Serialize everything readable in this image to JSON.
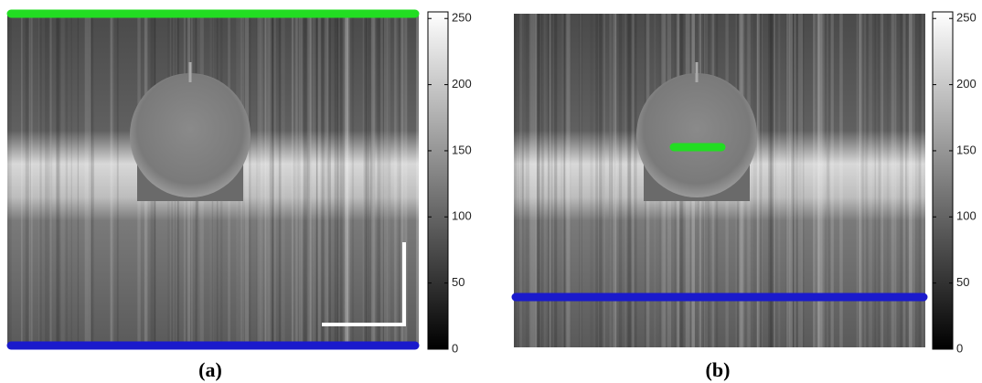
{
  "panels": [
    {
      "label": "(a)",
      "colorbar": {
        "lim": [
          0,
          255
        ],
        "ticks": [
          0,
          50,
          100,
          150,
          200,
          250
        ]
      }
    },
    {
      "label": "(b)",
      "colorbar": {
        "lim": [
          0,
          255
        ],
        "ticks": [
          0,
          50,
          100,
          150,
          200,
          250
        ]
      }
    }
  ]
}
